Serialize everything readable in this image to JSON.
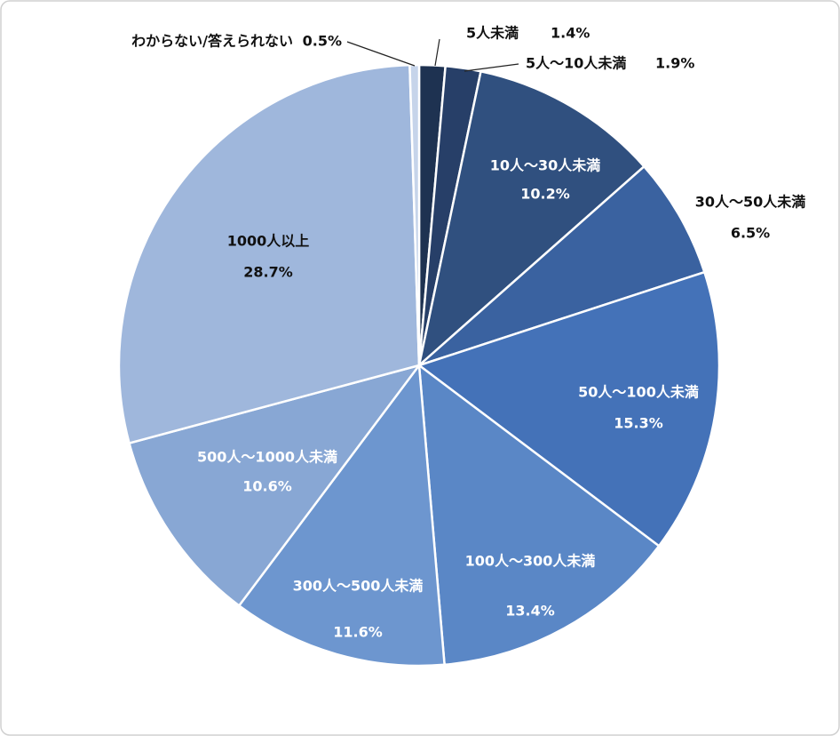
{
  "chart_data": {
    "type": "pie",
    "categories": [
      "5人未満",
      "5人～10人未満",
      "10人～30人未満",
      "30人～50人未満",
      "50人～100人未満",
      "100人～300人未満",
      "300人～500人未満",
      "500人～1000人未満",
      "1000人以上",
      "わからない/答えられない"
    ],
    "values": [
      1.4,
      1.9,
      10.2,
      6.5,
      15.3,
      13.4,
      11.6,
      10.6,
      28.7,
      0.5
    ],
    "value_labels": [
      "1.4%",
      "1.9%",
      "10.2%",
      "6.5%",
      "15.3%",
      "13.4%",
      "11.6%",
      "10.6%",
      "28.7%",
      "0.5%"
    ],
    "colors": [
      "#1e3251",
      "#273f68",
      "#30507f",
      "#3a62a0",
      "#4472b8",
      "#5a87c6",
      "#6d96cf",
      "#88a7d4",
      "#9fb7dc",
      "#c6d4ea"
    ]
  }
}
